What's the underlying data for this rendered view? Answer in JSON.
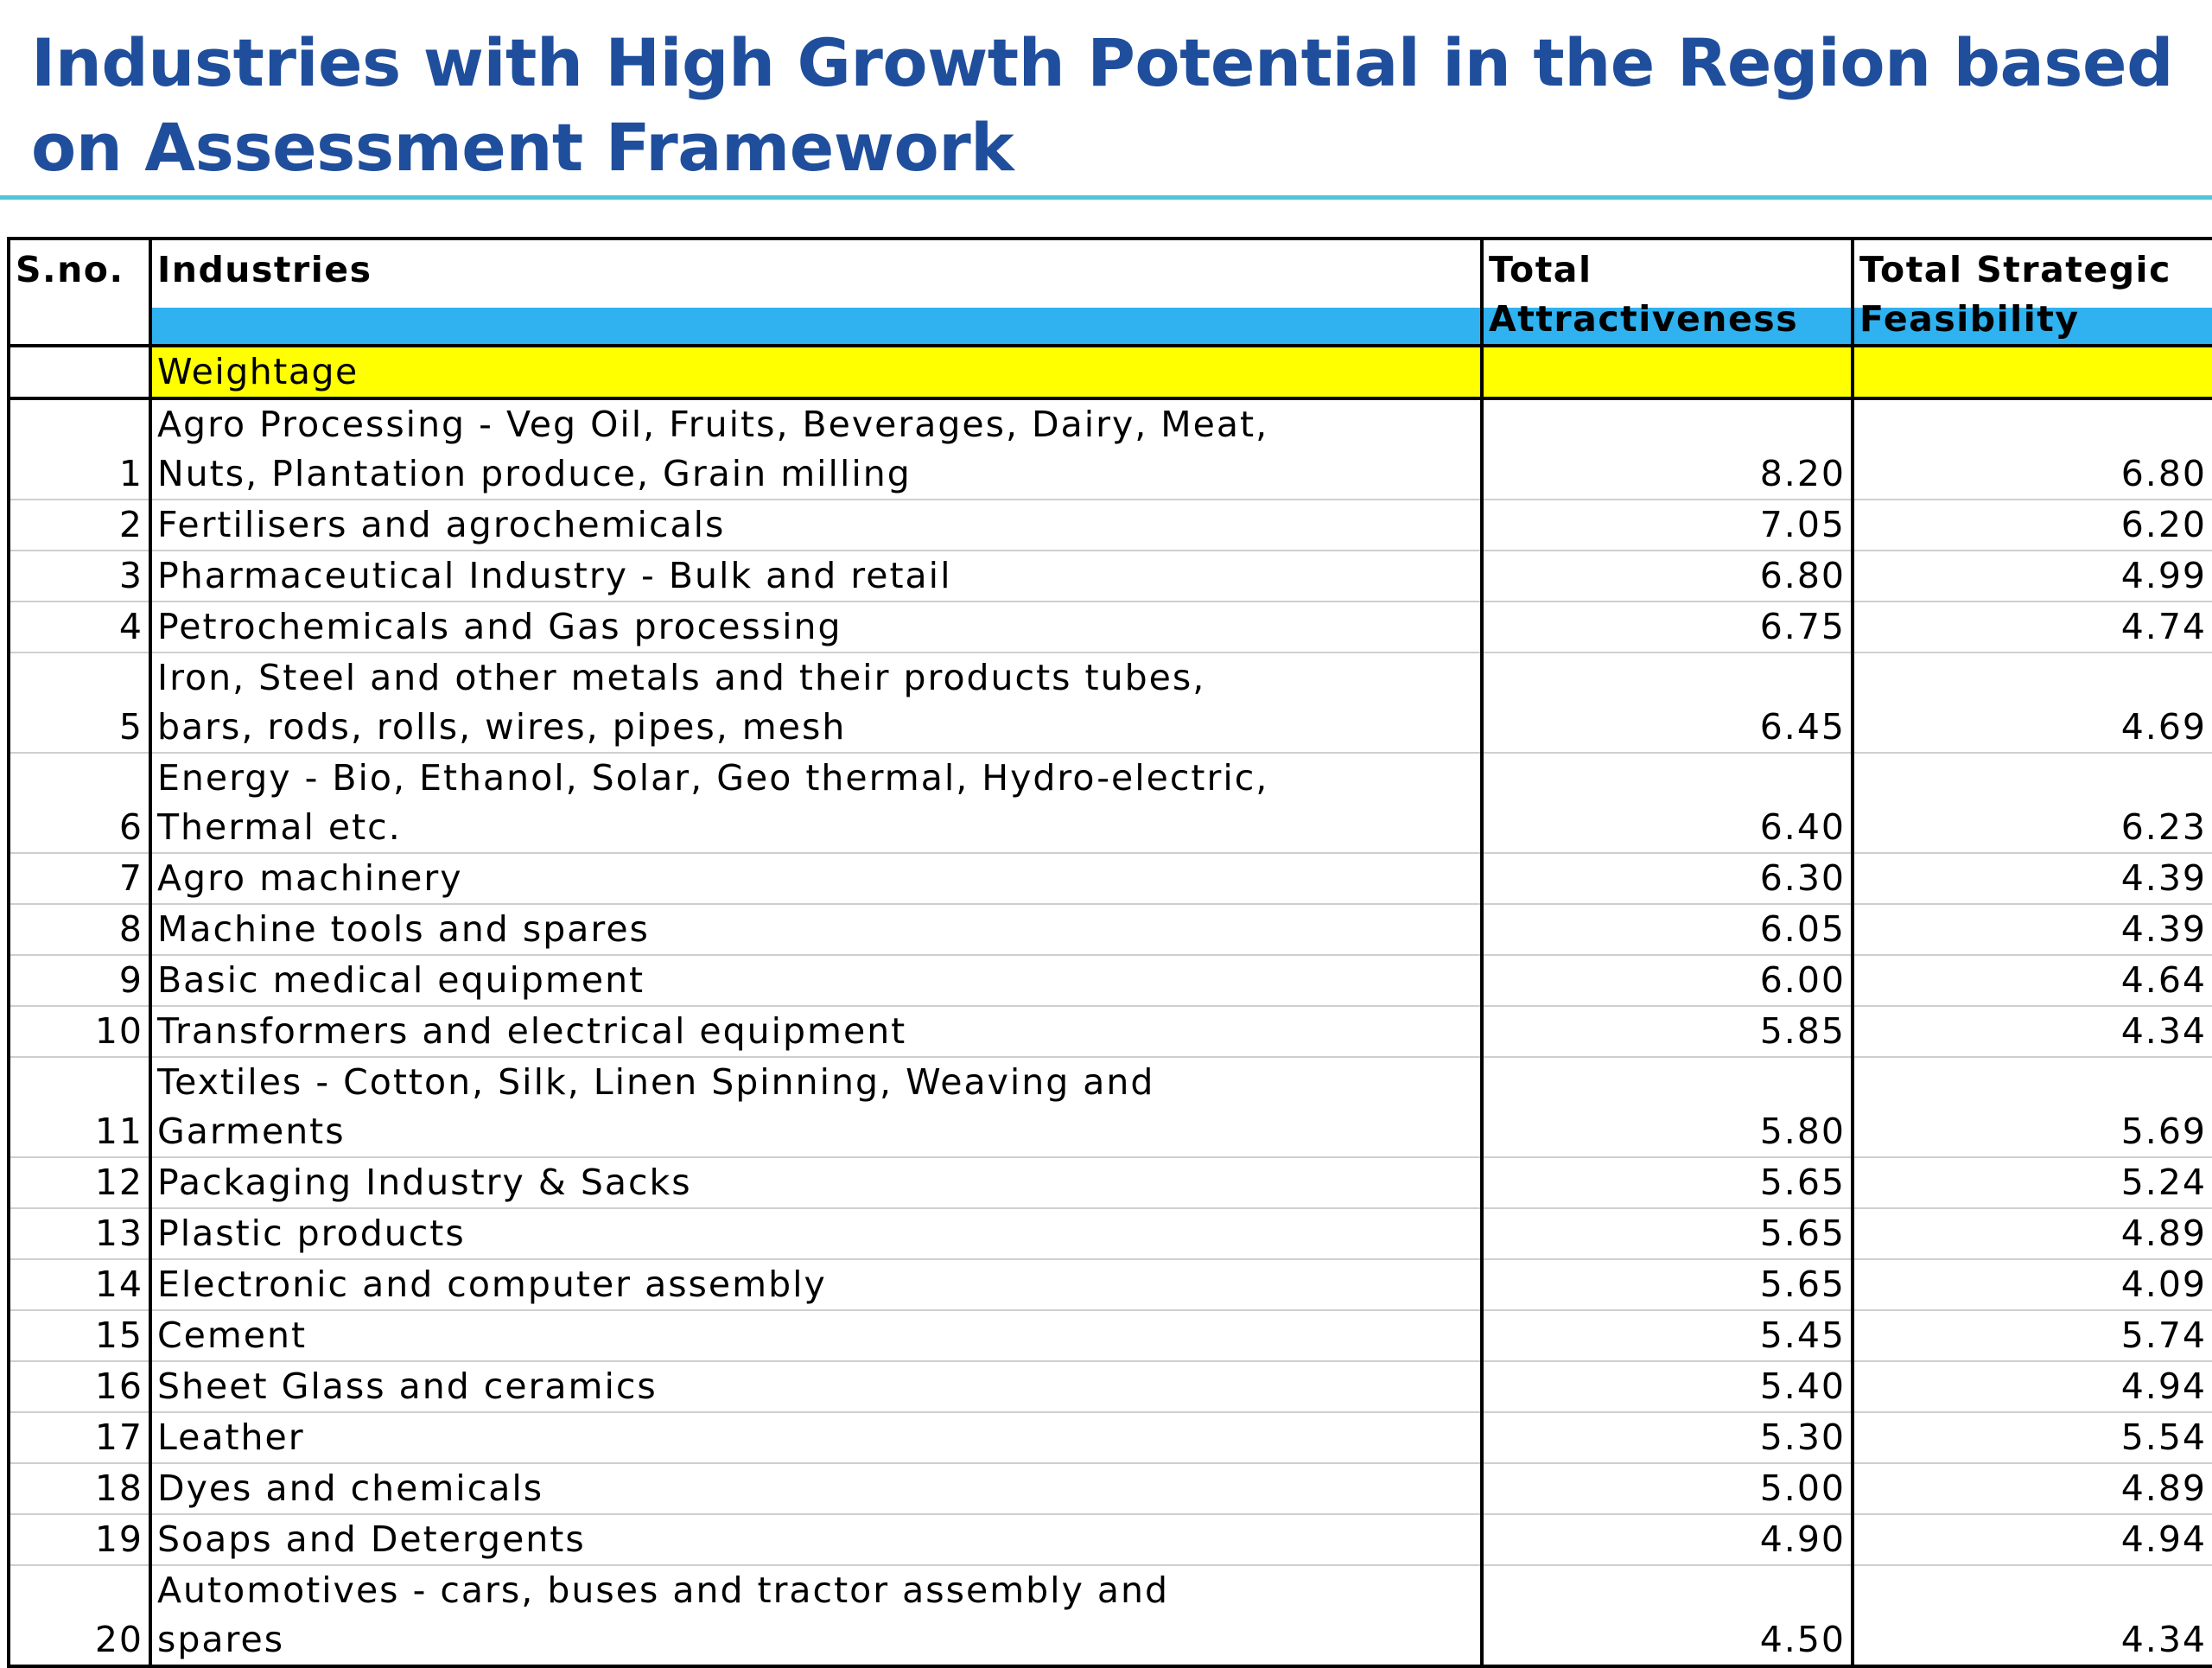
{
  "title": "Industries with High Growth Potential in the Region based on Assessment Framework",
  "table": {
    "headers": {
      "sno": "S.no.",
      "industries": "Industries",
      "attractiveness": "Total Attractiveness",
      "feasibility": "Total Strategic Feasibility"
    },
    "weightage_label": "Weightage",
    "rows": [
      {
        "sno": "1",
        "lines": [
          "Agro Processing - Veg Oil,  Fruits, Beverages, Dairy, Meat,",
          "Nuts, Plantation produce, Grain milling"
        ],
        "attractiveness": "8.20",
        "feasibility": "6.80"
      },
      {
        "sno": "2",
        "lines": [
          "Fertilisers  and agrochemicals"
        ],
        "attractiveness": "7.05",
        "feasibility": "6.20"
      },
      {
        "sno": "3",
        "lines": [
          "Pharmaceutical Industry - Bulk and retail"
        ],
        "attractiveness": "6.80",
        "feasibility": "4.99"
      },
      {
        "sno": "4",
        "lines": [
          "Petrochemicals and Gas processing"
        ],
        "attractiveness": "6.75",
        "feasibility": "4.74"
      },
      {
        "sno": "5",
        "lines": [
          "Iron,  Steel and other metals and their products tubes,",
          "bars, rods, rolls, wires, pipes, mesh"
        ],
        "attractiveness": "6.45",
        "feasibility": "4.69"
      },
      {
        "sno": "6",
        "lines": [
          "Energy - Bio, Ethanol, Solar, Geo thermal, Hydro-electric,",
          "Thermal etc."
        ],
        "attractiveness": "6.40",
        "feasibility": "6.23"
      },
      {
        "sno": "7",
        "lines": [
          "Agro machinery"
        ],
        "attractiveness": "6.30",
        "feasibility": "4.39"
      },
      {
        "sno": "8",
        "lines": [
          "Machine tools and spares"
        ],
        "attractiveness": "6.05",
        "feasibility": "4.39"
      },
      {
        "sno": "9",
        "lines": [
          "Basic medical equipment"
        ],
        "attractiveness": "6.00",
        "feasibility": "4.64"
      },
      {
        "sno": "10",
        "lines": [
          "Transformers and electrical equipment"
        ],
        "attractiveness": "5.85",
        "feasibility": "4.34"
      },
      {
        "sno": "11",
        "lines": [
          "Textiles - Cotton, Silk, Linen Spinning, Weaving and",
          "Garments"
        ],
        "attractiveness": "5.80",
        "feasibility": "5.69"
      },
      {
        "sno": "12",
        "lines": [
          "Packaging Industry & Sacks"
        ],
        "attractiveness": "5.65",
        "feasibility": "5.24"
      },
      {
        "sno": "13",
        "lines": [
          "Plastic products"
        ],
        "attractiveness": "5.65",
        "feasibility": "4.89"
      },
      {
        "sno": "14",
        "lines": [
          "Electronic and computer assembly"
        ],
        "attractiveness": "5.65",
        "feasibility": "4.09"
      },
      {
        "sno": "15",
        "lines": [
          "Cement"
        ],
        "attractiveness": "5.45",
        "feasibility": "5.74"
      },
      {
        "sno": "16",
        "lines": [
          "Sheet Glass and ceramics"
        ],
        "attractiveness": "5.40",
        "feasibility": "4.94"
      },
      {
        "sno": "17",
        "lines": [
          "Leather"
        ],
        "attractiveness": "5.30",
        "feasibility": "5.54"
      },
      {
        "sno": "18",
        "lines": [
          "Dyes and chemicals"
        ],
        "attractiveness": "5.00",
        "feasibility": "4.89"
      },
      {
        "sno": "19",
        "lines": [
          "Soaps and Detergents"
        ],
        "attractiveness": "4.90",
        "feasibility": "4.94"
      },
      {
        "sno": "20",
        "lines": [
          "Automotives - cars, buses and tractor assembly and",
          "spares"
        ],
        "attractiveness": "4.50",
        "feasibility": "4.34"
      }
    ]
  },
  "colors": {
    "title": "#1f4e9c",
    "title_rule": "#4fc6d8",
    "header_band": "#2fb2ef",
    "weightage_fill": "#ffff00"
  }
}
